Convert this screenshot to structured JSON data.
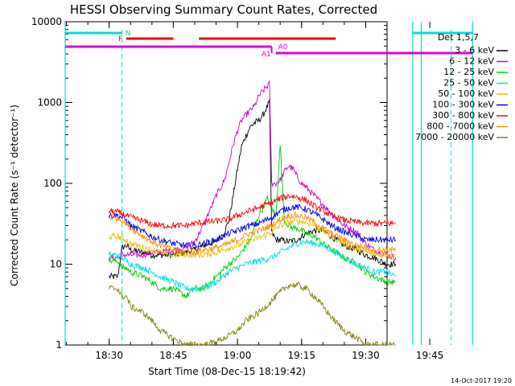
{
  "chart_data": {
    "type": "line",
    "title": "HESSI Observing Summary Count Rates, Corrected",
    "xlabel": "Start Time (08-Dec-15 18:19:42)",
    "ylabel": "Corrected Count Rate (s⁻¹ detector⁻¹)",
    "y_scale": "log",
    "ylim": [
      1,
      10000
    ],
    "xlim": [
      "18:19:42",
      "19:55"
    ],
    "x_ticks": [
      "18:30",
      "18:45",
      "19:00",
      "19:15",
      "19:30",
      "19:45"
    ],
    "y_ticks": [
      "1",
      "10",
      "100",
      "1000",
      "10000"
    ],
    "legend_title": "Det 1,5,7",
    "legend_position": "right",
    "date_stamp": "14-Oct-2017 19:20",
    "x_minutes_axis_note": "x values are minutes since 18:00",
    "series": [
      {
        "name": "3 - 6 keV",
        "color": "#000000",
        "x": [
          30,
          31,
          32,
          33,
          34,
          35,
          38,
          40,
          42,
          45,
          48,
          50,
          52,
          55,
          57,
          58,
          59,
          60,
          61,
          62,
          63,
          64,
          65,
          66,
          67,
          67.5,
          68,
          69,
          70,
          72,
          74,
          75,
          76,
          77,
          78,
          80,
          82,
          85,
          88,
          90,
          92,
          95,
          97
        ],
        "y": [
          7,
          7,
          7,
          16,
          17,
          15,
          14,
          13,
          13,
          13,
          14,
          15,
          17,
          19,
          25,
          35,
          70,
          150,
          290,
          390,
          500,
          560,
          600,
          700,
          900,
          1000,
          25,
          20,
          20,
          19,
          20,
          22,
          24,
          25,
          26,
          26,
          22,
          17,
          15,
          13,
          12,
          10,
          10
        ]
      },
      {
        "name": "6 - 12 keV",
        "color": "#cc00cc",
        "x": [
          30,
          31,
          32,
          33,
          34,
          35,
          38,
          40,
          42,
          45,
          48,
          50,
          52,
          55,
          57,
          58,
          59,
          60,
          61,
          62,
          63,
          64,
          65,
          66,
          67,
          67.5,
          68,
          69,
          70,
          71,
          72,
          73,
          74,
          75,
          76,
          78,
          80,
          82,
          85,
          88,
          90,
          92,
          95,
          97
        ],
        "y": [
          12,
          12,
          12,
          13,
          13,
          13,
          13,
          14,
          14,
          15,
          16,
          19,
          30,
          70,
          110,
          180,
          300,
          450,
          600,
          700,
          800,
          900,
          1200,
          1400,
          1600,
          1700,
          100,
          100,
          110,
          140,
          165,
          150,
          120,
          100,
          90,
          70,
          55,
          42,
          30,
          25,
          18,
          15,
          13,
          12
        ]
      },
      {
        "name": "12 - 25 keV",
        "color": "#00cc00",
        "x": [
          30,
          31,
          32,
          33,
          34,
          35,
          38,
          40,
          42,
          45,
          48,
          50,
          52,
          55,
          58,
          60,
          62,
          63,
          64,
          65,
          66,
          67,
          68,
          69,
          70,
          71,
          72,
          73,
          74,
          75,
          76,
          78,
          80,
          82,
          85,
          88,
          90,
          92,
          95,
          97
        ],
        "y": [
          11,
          11,
          11,
          9,
          9,
          8,
          7,
          6,
          5,
          5,
          4,
          5,
          5,
          7,
          10,
          12,
          17,
          20,
          28,
          40,
          50,
          65,
          50,
          40,
          300,
          35,
          30,
          28,
          28,
          26,
          24,
          22,
          18,
          15,
          12,
          10,
          8,
          7,
          6,
          6
        ]
      },
      {
        "name": "25 - 50 keV",
        "color": "#00dddd",
        "x": [
          30,
          31,
          32,
          33,
          34,
          35,
          38,
          40,
          42,
          45,
          48,
          50,
          52,
          55,
          58,
          60,
          62,
          65,
          68,
          70,
          72,
          74,
          76,
          78,
          80,
          82,
          85,
          88,
          90,
          92,
          95,
          97
        ],
        "y": [
          13,
          13,
          13,
          12,
          11,
          10,
          9,
          8,
          7,
          6,
          5,
          5,
          5,
          6,
          8,
          9,
          10,
          11,
          12,
          14,
          16,
          18,
          19,
          18,
          17,
          15,
          12,
          10,
          9,
          8,
          8,
          7
        ]
      },
      {
        "name": "50 - 100 keV",
        "color": "#e6c200",
        "x": [
          30,
          31,
          32,
          33,
          34,
          35,
          38,
          40,
          42,
          45,
          48,
          50,
          52,
          55,
          58,
          60,
          62,
          65,
          68,
          70,
          72,
          74,
          76,
          78,
          80,
          82,
          85,
          88,
          90,
          92,
          95,
          97
        ],
        "y": [
          22,
          22,
          22,
          21,
          20,
          18,
          16,
          15,
          14,
          13,
          13,
          13,
          13,
          14,
          16,
          17,
          19,
          21,
          25,
          30,
          33,
          34,
          33,
          30,
          26,
          22,
          18,
          15,
          14,
          13,
          13,
          13
        ]
      },
      {
        "name": "100 - 300 keV",
        "color": "#0000ee",
        "x": [
          30,
          31,
          32,
          33,
          34,
          35,
          38,
          40,
          42,
          45,
          48,
          50,
          52,
          55,
          58,
          60,
          62,
          65,
          68,
          70,
          72,
          74,
          76,
          78,
          80,
          82,
          85,
          88,
          90,
          92,
          95,
          97
        ],
        "y": [
          40,
          40,
          40,
          38,
          35,
          30,
          25,
          22,
          20,
          18,
          17,
          17,
          18,
          20,
          24,
          26,
          29,
          32,
          38,
          45,
          50,
          51,
          48,
          42,
          36,
          30,
          25,
          22,
          20,
          20,
          20,
          20
        ]
      },
      {
        "name": "300 - 800 keV",
        "color": "#ff0000",
        "x": [
          30,
          31,
          32,
          33,
          34,
          35,
          38,
          40,
          42,
          45,
          48,
          50,
          52,
          55,
          58,
          60,
          62,
          65,
          68,
          70,
          72,
          74,
          76,
          78,
          80,
          82,
          85,
          88,
          90,
          92,
          95,
          97
        ],
        "y": [
          45,
          45,
          44,
          42,
          40,
          38,
          34,
          31,
          30,
          30,
          30,
          32,
          33,
          34,
          36,
          40,
          44,
          50,
          58,
          65,
          70,
          68,
          62,
          52,
          46,
          40,
          35,
          33,
          32,
          32,
          32,
          32
        ]
      },
      {
        "name": "800 - 7000 keV",
        "color": "#ff8c00",
        "x": [
          30,
          31,
          32,
          33,
          34,
          35,
          38,
          40,
          42,
          45,
          48,
          50,
          52,
          55,
          58,
          60,
          62,
          65,
          68,
          70,
          72,
          74,
          76,
          78,
          80,
          82,
          85,
          88,
          90,
          92,
          95,
          97
        ],
        "y": [
          38,
          38,
          37,
          35,
          32,
          28,
          22,
          19,
          17,
          15,
          14,
          14,
          15,
          16,
          18,
          20,
          23,
          26,
          30,
          36,
          40,
          40,
          38,
          33,
          28,
          24,
          20,
          17,
          16,
          15,
          15,
          15
        ]
      },
      {
        "name": "7000 - 20000 keV",
        "color": "#808000",
        "x": [
          30,
          31,
          32,
          33,
          34,
          35,
          38,
          40,
          42,
          45,
          48,
          50,
          52,
          55,
          58,
          60,
          62,
          65,
          68,
          70,
          72,
          74,
          76,
          78,
          80,
          82,
          85,
          88,
          90,
          92,
          95,
          97
        ],
        "y": [
          5,
          5,
          5,
          4,
          4,
          3,
          2.5,
          2,
          1.5,
          1.2,
          1,
          1,
          1,
          1.1,
          1.3,
          1.5,
          2,
          2.5,
          3.5,
          4.5,
          5.5,
          5.5,
          5,
          4,
          3,
          2.2,
          1.5,
          1.2,
          1,
          1,
          1,
          1
        ]
      }
    ],
    "markers": {
      "cyan_solid_lines_x": [
        "18:19:42",
        "19:41",
        "19:43",
        "19:55"
      ],
      "cyan_dashed_lines_x": [
        "18:33",
        "19:50"
      ],
      "cyan_bars": [
        {
          "label": "N",
          "from": "18:19:42",
          "to": "18:33"
        },
        {
          "label": "",
          "from": "19:41",
          "to": "19:55"
        }
      ],
      "red_bars": [
        {
          "label": "F",
          "from": "18:34",
          "to": "18:45"
        },
        {
          "label": "",
          "from": "18:51",
          "to": "19:23"
        }
      ],
      "magenta_bars": [
        {
          "label": "",
          "from": "18:19:42",
          "to": "19:08"
        },
        {
          "label": "A1",
          "from": "19:09",
          "to": "19:55"
        }
      ],
      "magenta_label_A0": "A0"
    }
  }
}
